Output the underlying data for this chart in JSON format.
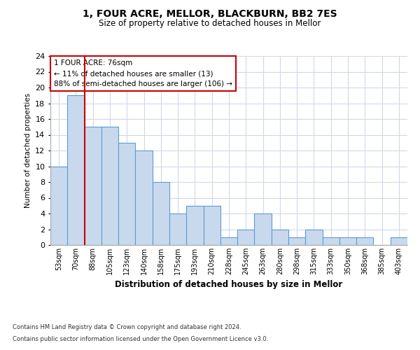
{
  "title1": "1, FOUR ACRE, MELLOR, BLACKBURN, BB2 7ES",
  "title2": "Size of property relative to detached houses in Mellor",
  "xlabel": "Distribution of detached houses by size in Mellor",
  "ylabel": "Number of detached properties",
  "categories": [
    "53sqm",
    "70sqm",
    "88sqm",
    "105sqm",
    "123sqm",
    "140sqm",
    "158sqm",
    "175sqm",
    "193sqm",
    "210sqm",
    "228sqm",
    "245sqm",
    "263sqm",
    "280sqm",
    "298sqm",
    "315sqm",
    "333sqm",
    "350sqm",
    "368sqm",
    "385sqm",
    "403sqm"
  ],
  "values": [
    10,
    19,
    15,
    15,
    13,
    12,
    8,
    4,
    5,
    5,
    1,
    2,
    4,
    2,
    1,
    2,
    1,
    1,
    1,
    0,
    1
  ],
  "bar_color": "#c9d9ed",
  "bar_edge_color": "#5b9bd5",
  "red_line_index": 1,
  "ylim": [
    0,
    24
  ],
  "yticks": [
    0,
    2,
    4,
    6,
    8,
    10,
    12,
    14,
    16,
    18,
    20,
    22,
    24
  ],
  "annotation_title": "1 FOUR ACRE: 76sqm",
  "annotation_line1": "← 11% of detached houses are smaller (13)",
  "annotation_line2": "88% of semi-detached houses are larger (106) →",
  "footnote1": "Contains HM Land Registry data © Crown copyright and database right 2024.",
  "footnote2": "Contains public sector information licensed under the Open Government Licence v3.0.",
  "bg_color": "#ffffff",
  "grid_color": "#d0d8e8",
  "annotation_box_color": "#ffffff",
  "annotation_box_edgecolor": "#cc0000",
  "red_line_color": "#cc0000"
}
